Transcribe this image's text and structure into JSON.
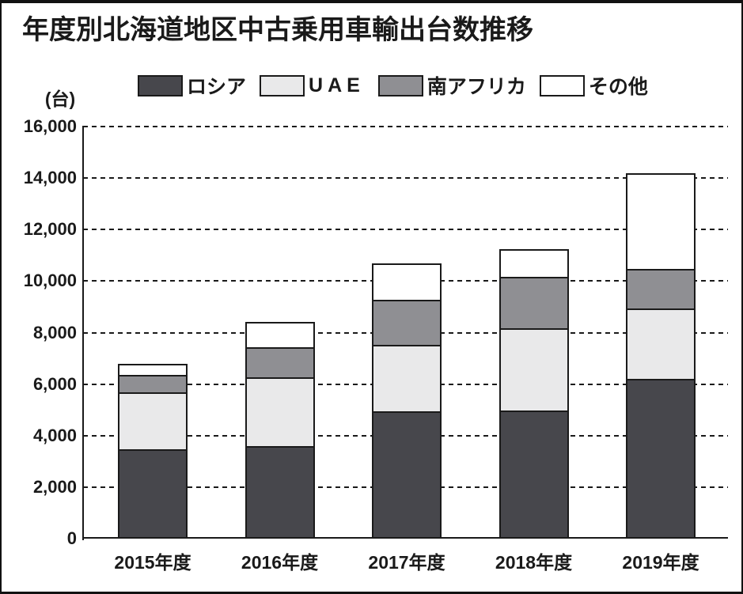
{
  "title": "年度別北海道地区中古乗用車輸出台数推移",
  "chart_data": {
    "type": "bar",
    "stacked": true,
    "title": "年度別北海道地区中古乗用車輸出台数推移",
    "ylabel": "(台)",
    "categories": [
      "2015年度",
      "2016年度",
      "2017年度",
      "2018年度",
      "2019年度"
    ],
    "series": [
      {
        "name": "ロシア",
        "color": "#47474c",
        "values": [
          3500,
          3600,
          4950,
          5000,
          6200
        ]
      },
      {
        "name": "UAE",
        "color": "#e9e9ea",
        "values": [
          2250,
          2700,
          2600,
          3200,
          2750
        ]
      },
      {
        "name": "南アフリカ",
        "color": "#8f8f93",
        "values": [
          650,
          1150,
          1750,
          2000,
          1500
        ]
      },
      {
        "name": "その他",
        "color": "#ffffff",
        "values": [
          400,
          950,
          1400,
          1050,
          3750
        ]
      }
    ],
    "ylim": [
      0,
      16000
    ],
    "ytick_step": 2000,
    "ytick_labels": [
      "0",
      "2,000",
      "4,000",
      "6,000",
      "8,000",
      "10,000",
      "12,000",
      "14,000",
      "16,000"
    ],
    "grid": "dashed-horizontal",
    "legend_position": "top",
    "ink_color": "#1a1a1a"
  }
}
